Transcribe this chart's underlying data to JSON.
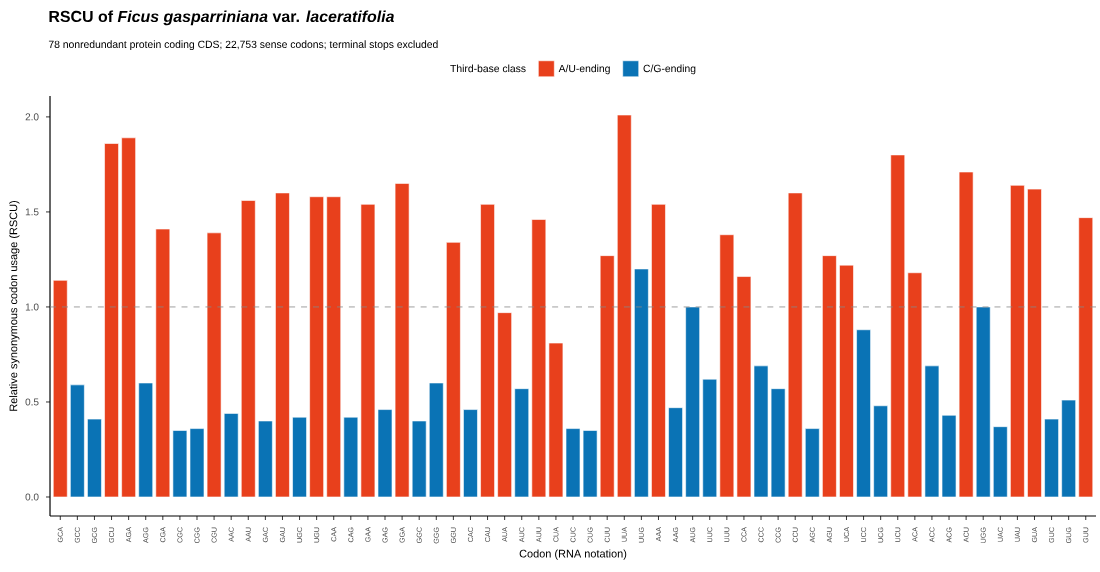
{
  "chart_data": {
    "type": "bar",
    "title": "RSCU of *Ficus gasparriniana* var. *laceratifolia*",
    "subtitle": "78 nonredundant protein coding CDS; 22,753 sense codons; terminal stops excluded",
    "xlabel": "Codon (RNA notation)",
    "ylabel": "Relative synonymous codon usage (RSCU)",
    "legend_title": "Third-base class",
    "legend": "top",
    "categories": [
      "GCA",
      "GCC",
      "GCG",
      "GCU",
      "AGA",
      "AGG",
      "CGA",
      "CGC",
      "CGG",
      "CGU",
      "AAC",
      "AAU",
      "GAC",
      "GAU",
      "UGC",
      "UGU",
      "CAA",
      "CAG",
      "GAA",
      "GAG",
      "GGA",
      "GGC",
      "GGG",
      "GGU",
      "CAC",
      "CAU",
      "AUA",
      "AUC",
      "AUU",
      "CUA",
      "CUC",
      "CUG",
      "CUU",
      "UUA",
      "UUG",
      "AAA",
      "AAG",
      "AUG",
      "UUC",
      "UUU",
      "CCA",
      "CCC",
      "CCG",
      "CCU",
      "AGC",
      "AGU",
      "UCA",
      "UCC",
      "UCG",
      "UCU",
      "ACA",
      "ACC",
      "ACG",
      "ACU",
      "UGG",
      "UAC",
      "UAU",
      "GUA",
      "GUC",
      "GUG",
      "GUU"
    ],
    "series": [
      {
        "name": "A/U-ending",
        "color": "#e8401c",
        "values": [
          1.14,
          null,
          null,
          1.86,
          1.89,
          null,
          1.41,
          null,
          null,
          1.39,
          null,
          1.56,
          null,
          1.6,
          null,
          1.58,
          1.58,
          null,
          1.54,
          null,
          1.65,
          null,
          null,
          1.34,
          null,
          1.54,
          0.97,
          null,
          1.46,
          0.81,
          null,
          null,
          1.27,
          2.01,
          null,
          1.54,
          null,
          null,
          null,
          1.38,
          1.16,
          null,
          null,
          1.6,
          null,
          1.27,
          1.22,
          null,
          null,
          1.8,
          1.18,
          null,
          null,
          1.71,
          null,
          null,
          1.64,
          1.62,
          null,
          null,
          1.47
        ]
      },
      {
        "name": "C/G-ending",
        "color": "#0a73b5",
        "values": [
          null,
          0.59,
          0.41,
          null,
          null,
          0.6,
          null,
          0.35,
          0.36,
          null,
          0.44,
          null,
          0.4,
          null,
          0.42,
          null,
          null,
          0.42,
          null,
          0.46,
          null,
          0.4,
          0.6,
          null,
          0.46,
          null,
          null,
          0.57,
          null,
          null,
          0.36,
          0.35,
          null,
          null,
          1.2,
          null,
          0.47,
          1.0,
          0.62,
          null,
          null,
          0.69,
          0.57,
          null,
          0.36,
          null,
          null,
          0.88,
          0.48,
          null,
          null,
          0.69,
          0.43,
          null,
          1.0,
          0.37,
          null,
          null,
          0.41,
          0.51,
          null
        ]
      }
    ],
    "ylim": [
      -0.1,
      2.11
    ],
    "yticks": [
      {
        "value": 0,
        "label": "0.0"
      },
      {
        "value": 0.5,
        "label": "0.5"
      },
      {
        "value": 1,
        "label": "1.0"
      },
      {
        "value": 1.5,
        "label": "1.5"
      },
      {
        "value": 2,
        "label": "2.0"
      }
    ],
    "ref_lines": [
      {
        "axis": "y",
        "value": 1,
        "color": "#888888",
        "line_style": "dashed"
      }
    ]
  }
}
